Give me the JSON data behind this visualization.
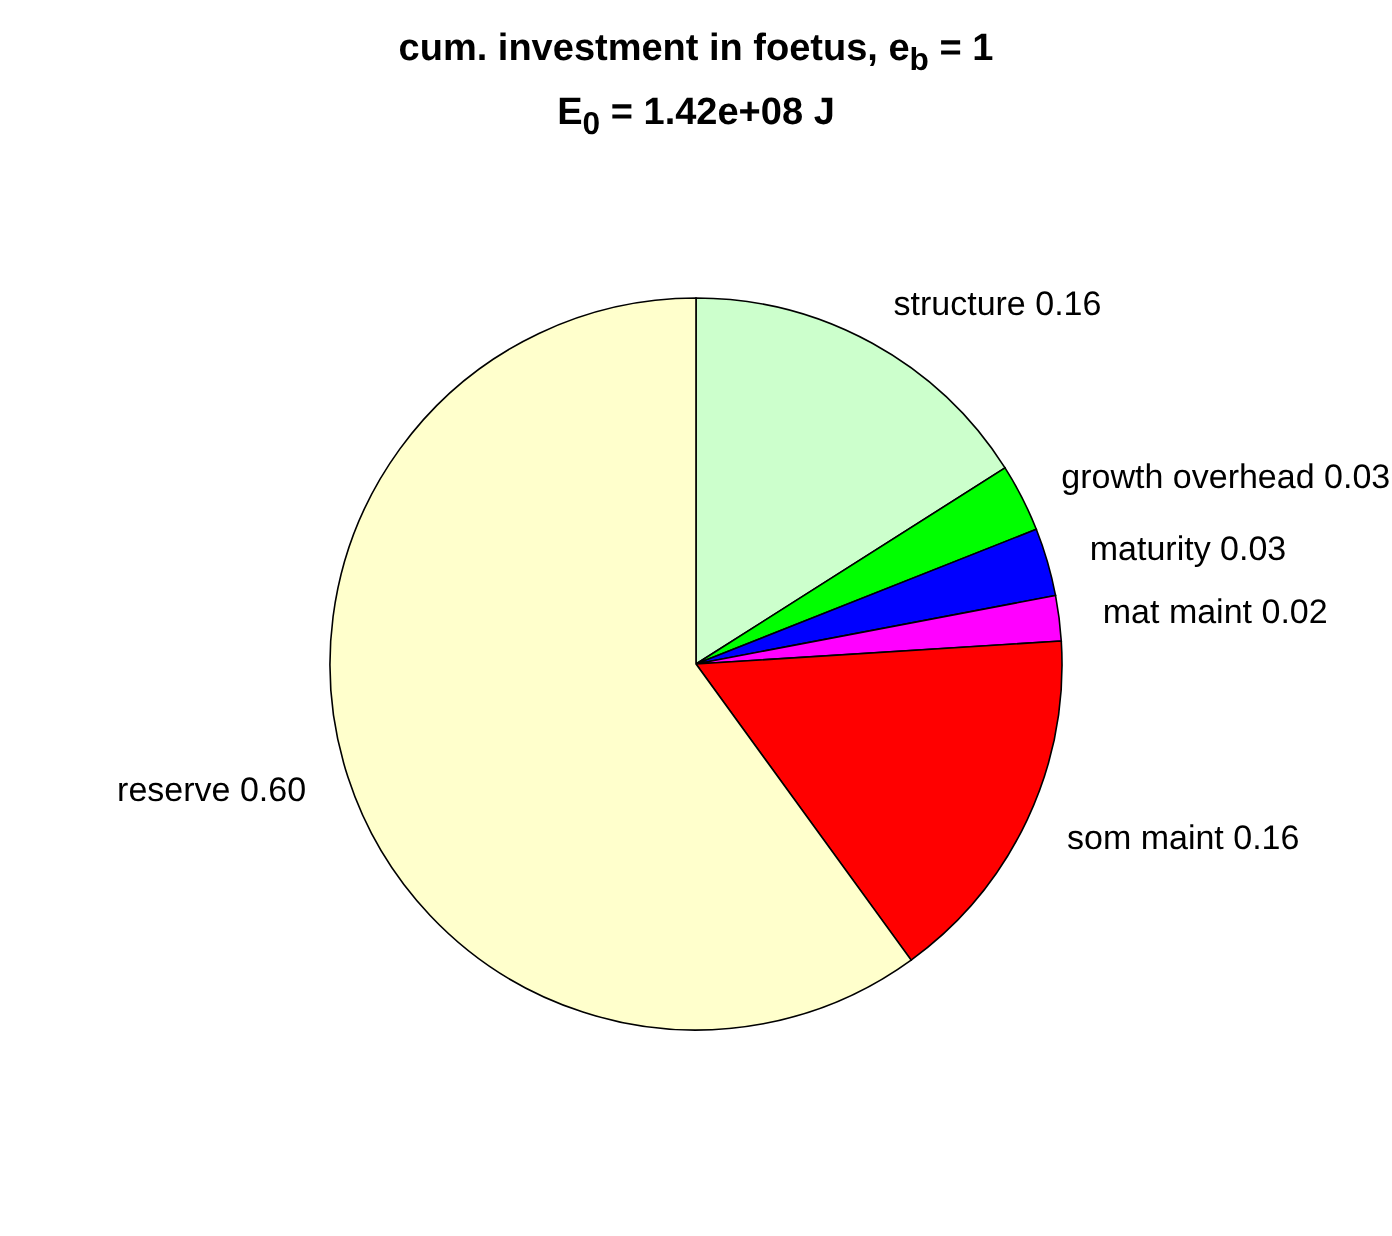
{
  "chart_data": {
    "type": "pie",
    "title": "cum. investment in foetus, e$_{b}$ = 1",
    "subtitle": "E$_{0}$ = 1.42e+08 J",
    "categories": [
      "structure",
      "growth overhead",
      "maturity",
      "mat maint",
      "som maint",
      "reserve"
    ],
    "values": [
      0.16,
      0.03,
      0.03,
      0.02,
      0.16,
      0.6
    ],
    "value_labels": [
      "0.16",
      "0.03",
      "0.03",
      "0.02",
      "0.16",
      "0.60"
    ],
    "colors": [
      "#ccffcc",
      "#00ff00",
      "#0000ff",
      "#ff00ff",
      "#ff0000",
      "#ffffcc"
    ],
    "legend": false
  }
}
